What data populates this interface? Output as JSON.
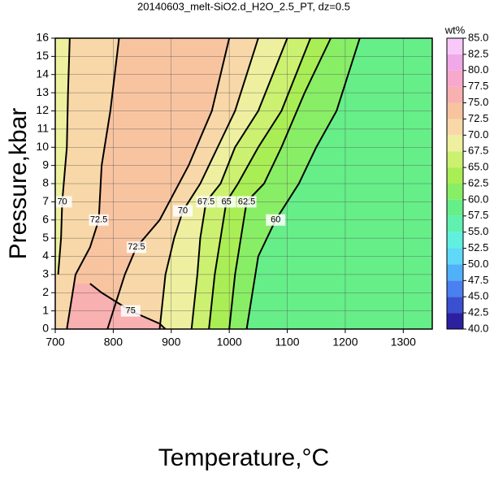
{
  "chart_data": {
    "type": "contour",
    "title": "20140603_melt-SiO2.d_H2O_2.5_PT, dz=0.5",
    "x_label": "Temperature,°C",
    "y_label": "Pressure,kbar",
    "xlim": [
      700,
      1350
    ],
    "ylim": [
      0,
      16
    ],
    "xticks": [
      700,
      800,
      900,
      1000,
      1100,
      1200,
      1300
    ],
    "yticks": [
      0,
      1,
      2,
      3,
      4,
      5,
      6,
      7,
      8,
      9,
      10,
      11,
      12,
      13,
      14,
      15,
      16
    ],
    "grid": true,
    "contours": [
      {
        "level": 60,
        "x": [
          1225,
          1185,
          1150,
          1120,
          1080,
          1050,
          1040,
          1035,
          1030
        ],
        "y": [
          16,
          12,
          10,
          8,
          6,
          4,
          2,
          1,
          0
        ]
      },
      {
        "level": 62.5,
        "x": [
          1175,
          1130,
          1090,
          1060,
          1030,
          1020,
          1010,
          1005,
          1000
        ],
        "y": [
          16,
          13,
          10,
          8,
          7,
          5,
          3,
          1.5,
          0
        ]
      },
      {
        "level": 65,
        "x": [
          1140,
          1090,
          1050,
          1015,
          995,
          985,
          975,
          970,
          965
        ],
        "y": [
          16,
          12,
          10,
          8,
          7,
          5,
          3,
          1.5,
          0
        ]
      },
      {
        "level": 67.5,
        "x": [
          1100,
          1050,
          1010,
          985,
          960,
          950,
          945,
          940,
          935
        ],
        "y": [
          16,
          12,
          10,
          8,
          7,
          5,
          3,
          1.5,
          0
        ]
      },
      {
        "level": 70,
        "x": [
          1050,
          1010,
          980,
          950,
          920,
          905,
          890,
          885,
          880
        ],
        "y": [
          16,
          12,
          10,
          8,
          6.5,
          5,
          3,
          1.5,
          0
        ]
      },
      {
        "level": 72.5,
        "x": [
          1000,
          970,
          930,
          880,
          840,
          820,
          810,
          800,
          790
        ],
        "y": [
          16,
          12,
          9,
          6,
          4.5,
          3,
          2,
          1,
          0
        ]
      },
      {
        "level": 75,
        "x": [
          760,
          780,
          830,
          880,
          890
        ],
        "y": [
          2.5,
          2,
          1,
          0.3,
          0
        ]
      }
    ],
    "contours_left": [
      {
        "level": 72.5,
        "x": [
          810,
          795,
          780,
          775,
          760,
          735,
          720
        ],
        "y": [
          16,
          12,
          9,
          6,
          4.5,
          3,
          0
        ]
      },
      {
        "level": 70,
        "x": [
          725,
          722,
          720,
          712,
          710,
          705
        ],
        "y": [
          16,
          13,
          10,
          7,
          5,
          3
        ]
      }
    ],
    "colorbar": {
      "label": "wt%",
      "ticks": [
        {
          "value": 40,
          "label": "40.0"
        },
        {
          "value": 42.5,
          "label": "42.5"
        },
        {
          "value": 45,
          "label": "45.0"
        },
        {
          "value": 47.5,
          "label": "47.5"
        },
        {
          "value": 50,
          "label": "50.0"
        },
        {
          "value": 52.5,
          "label": "52.5"
        },
        {
          "value": 55,
          "label": "55.0"
        },
        {
          "value": 57.5,
          "label": "57.5"
        },
        {
          "value": 60,
          "label": "60.0"
        },
        {
          "value": 62.5,
          "label": "62.5"
        },
        {
          "value": 65,
          "label": "65.0"
        },
        {
          "value": 67.5,
          "label": "67.5"
        },
        {
          "value": 70,
          "label": "70.0"
        },
        {
          "value": 72.5,
          "label": "72.5"
        },
        {
          "value": 75,
          "label": "75.0"
        },
        {
          "value": 77.5,
          "label": "77.5"
        },
        {
          "value": 80,
          "label": "80.0"
        },
        {
          "value": 82.5,
          "label": "82.5"
        },
        {
          "value": 85,
          "label": "85.0"
        }
      ],
      "colors": [
        "#2a20a0",
        "#3a50d0",
        "#4a80f0",
        "#50b0f8",
        "#60d8f8",
        "#60f0e0",
        "#60f0b0",
        "#66ee88",
        "#88ee66",
        "#aaee55",
        "#ccf070",
        "#eef0a0",
        "#f8d8a8",
        "#f8c4a0",
        "#f8b0b0",
        "#f8a8cc",
        "#f0a8e8",
        "#f8c8f8"
      ]
    }
  }
}
